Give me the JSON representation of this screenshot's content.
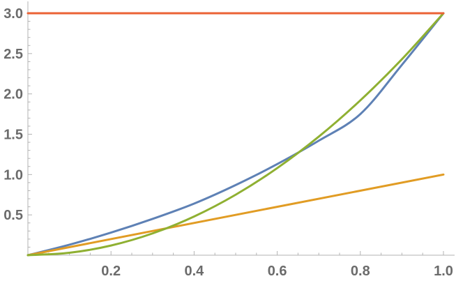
{
  "chart_data": {
    "type": "line",
    "title": "",
    "xlabel": "",
    "ylabel": "",
    "xlim": [
      0,
      1
    ],
    "ylim": [
      0,
      3
    ],
    "grid": false,
    "legend": "none",
    "x_ticks": [
      {
        "value": 0.2,
        "label": "0.2"
      },
      {
        "value": 0.4,
        "label": "0.4"
      },
      {
        "value": 0.6,
        "label": "0.6"
      },
      {
        "value": 0.8,
        "label": "0.8"
      },
      {
        "value": 1.0,
        "label": "1.0"
      }
    ],
    "y_ticks": [
      {
        "value": 0.5,
        "label": "0.5"
      },
      {
        "value": 1.0,
        "label": "1.0"
      },
      {
        "value": 1.5,
        "label": "1.5"
      },
      {
        "value": 2.0,
        "label": "2.0"
      },
      {
        "value": 2.5,
        "label": "2.5"
      },
      {
        "value": 3.0,
        "label": "3.0"
      }
    ],
    "series": [
      {
        "color": "#5E81B5",
        "x": [
          0,
          0.1,
          0.2,
          0.3,
          0.4,
          0.5,
          0.6,
          0.7,
          0.8,
          0.9,
          1.0
        ],
        "y": [
          0,
          0.13,
          0.28,
          0.45,
          0.64,
          0.87,
          1.13,
          1.42,
          1.75,
          2.36,
          3.0
        ]
      },
      {
        "color": "#E19C24",
        "x": [
          0,
          1.0
        ],
        "y": [
          0,
          1.0
        ]
      },
      {
        "color": "#8FB032",
        "x": [
          0,
          0.1,
          0.2,
          0.3,
          0.4,
          0.5,
          0.6,
          0.7,
          0.8,
          0.9,
          1.0
        ],
        "y": [
          0,
          0.03,
          0.12,
          0.27,
          0.48,
          0.75,
          1.08,
          1.47,
          1.92,
          2.43,
          3.0
        ]
      },
      {
        "color": "#EB6235",
        "x": [
          0,
          1.0
        ],
        "y": [
          3.0,
          3.0
        ]
      }
    ]
  }
}
